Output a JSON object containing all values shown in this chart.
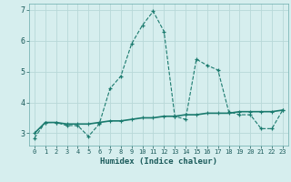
{
  "title": "",
  "xlabel": "Humidex (Indice chaleur)",
  "ylabel": "",
  "bg_color": "#d6eeee",
  "grid_color": "#c8e0e0",
  "line_color": "#1a7a6e",
  "xlim": [
    -0.5,
    23.5
  ],
  "ylim": [
    2.6,
    7.2
  ],
  "yticks": [
    3,
    4,
    5,
    6,
    7
  ],
  "xticks": [
    0,
    1,
    2,
    3,
    4,
    5,
    6,
    7,
    8,
    9,
    10,
    11,
    12,
    13,
    14,
    15,
    16,
    17,
    18,
    19,
    20,
    21,
    22,
    23
  ],
  "line1_x": [
    0,
    1,
    2,
    3,
    4,
    5,
    6,
    7,
    8,
    9,
    10,
    11,
    12,
    13,
    14,
    15,
    16,
    17,
    18,
    19,
    20,
    21,
    22,
    23
  ],
  "line1_y": [
    2.85,
    3.35,
    3.35,
    3.25,
    3.25,
    2.9,
    3.3,
    4.45,
    4.85,
    5.9,
    6.5,
    6.95,
    6.3,
    3.55,
    3.45,
    5.4,
    5.2,
    5.05,
    3.7,
    3.6,
    3.6,
    3.15,
    3.15,
    3.75
  ],
  "line2_x": [
    0,
    1,
    2,
    3,
    4,
    5,
    6,
    7,
    8,
    9,
    10,
    11,
    12,
    13,
    14,
    15,
    16,
    17,
    18,
    19,
    20,
    21,
    22,
    23
  ],
  "line2_y": [
    3.0,
    3.35,
    3.35,
    3.3,
    3.3,
    3.3,
    3.35,
    3.4,
    3.4,
    3.45,
    3.5,
    3.5,
    3.55,
    3.55,
    3.6,
    3.6,
    3.65,
    3.65,
    3.65,
    3.7,
    3.7,
    3.7,
    3.7,
    3.75
  ]
}
